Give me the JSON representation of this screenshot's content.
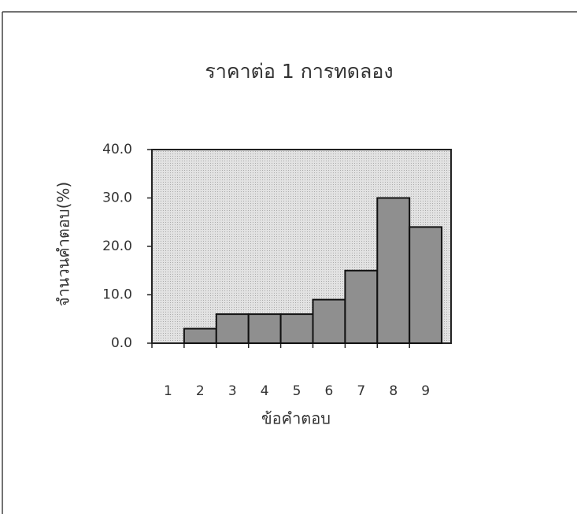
{
  "chart_data": {
    "type": "bar",
    "title": "ราคาต่อ 1 การทดลอง",
    "y_label": "จำนวนคำตอบ(%)",
    "x_label": "ข้อคำตอบ",
    "categories": [
      "1",
      "2",
      "3",
      "4",
      "5",
      "6",
      "7",
      "8",
      "9"
    ],
    "values": [
      0,
      3,
      6,
      6,
      6,
      9,
      15,
      30,
      24
    ],
    "color": "#8f8f8f",
    "ylim": [
      0,
      40
    ],
    "yticks": [
      {
        "value": 0,
        "label": "0.0"
      },
      {
        "value": 10,
        "label": "10.0"
      },
      {
        "value": 20,
        "label": "20.0"
      },
      {
        "value": 30,
        "label": "30.0"
      },
      {
        "value": 40,
        "label": "40.0"
      }
    ],
    "grid": false
  }
}
